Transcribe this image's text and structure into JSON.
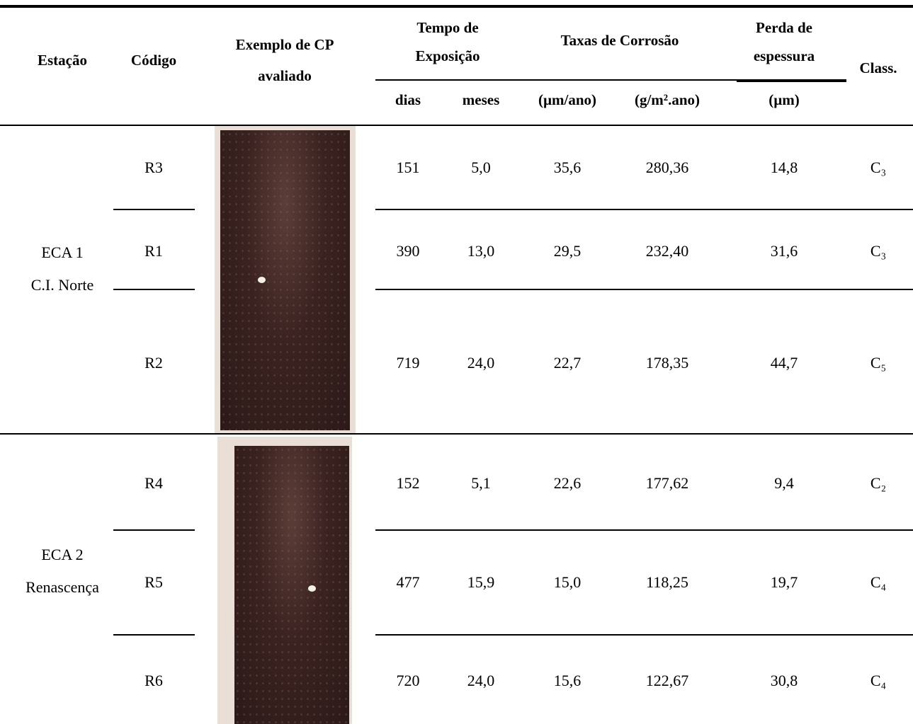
{
  "header": {
    "station": "Estação",
    "code": "Código",
    "sample": [
      "Exemplo de CP",
      "avaliado"
    ],
    "time": [
      "Tempo de",
      "Exposição"
    ],
    "rates": "Taxas de Corrosão",
    "loss": [
      "Perda de",
      "espessura"
    ],
    "class": "Class.",
    "units": [
      "dias",
      "meses",
      "(µm/ano)",
      "(g/m².ano)",
      "(µm)"
    ]
  },
  "groups": [
    {
      "station": [
        "ECA 1",
        "C.I. Norte"
      ],
      "rows": [
        [
          "R3",
          "151",
          "5,0",
          "35,6",
          "280,36",
          "14,8",
          "C₃"
        ],
        [
          "R1",
          "390",
          "13,0",
          "29,5",
          "232,40",
          "31,6",
          "C₃"
        ],
        [
          "R2",
          "719",
          "24,0",
          "22,7",
          "178,35",
          "44,7",
          "C₅"
        ]
      ]
    },
    {
      "station": [
        "ECA 2",
        "Renascença"
      ],
      "rows": [
        [
          "R4",
          "152",
          "5,1",
          "22,6",
          "177,62",
          "9,4",
          "C₂"
        ],
        [
          "R5",
          "477",
          "15,9",
          "15,0",
          "118,25",
          "19,7",
          "C₄"
        ],
        [
          "R6",
          "720",
          "24,0",
          "15,6",
          "122,67",
          "30,8",
          "C₄"
        ]
      ]
    }
  ]
}
